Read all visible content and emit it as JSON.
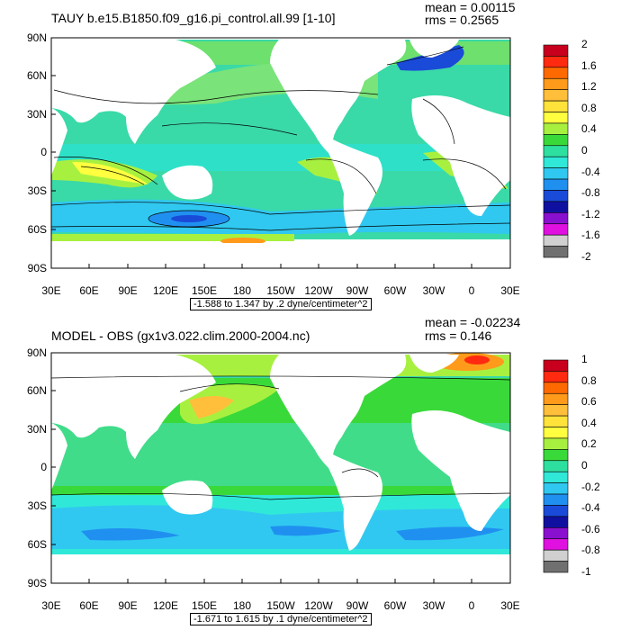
{
  "panels": [
    {
      "title": "TAUY b.e15.B1850.f09_g16.pi_control.all.99 [1-10]",
      "mean": "mean = 0.00115",
      "rms": "rms = 0.2565",
      "range_note": "-1.588 to 1.347 by .2 dyne/centimeter^2",
      "colorbar_labels": [
        "2",
        "1.6",
        "1.2",
        "0.8",
        "0.4",
        "0",
        "-0.4",
        "-0.8",
        "-1.2",
        "-1.6",
        "-2"
      ],
      "colorbar_colors": [
        "#c8001e",
        "#ff2a10",
        "#ff6a00",
        "#ff9a1a",
        "#ffbf3a",
        "#ffe23a",
        "#ffff40",
        "#a8f040",
        "#3ad93a",
        "#2ee0a0",
        "#30e8d8",
        "#30c8f0",
        "#2090f0",
        "#1a4ad8",
        "#1010a0",
        "#8a10d0",
        "#e010e0",
        "#d0d0d0",
        "#707070"
      ]
    },
    {
      "title": "MODEL - OBS (gx1v3.022.clim.2000-2004.nc)",
      "mean": "mean = -0.02234",
      "rms": "rms = 0.146",
      "range_note": "-1.671 to 1.615 by .1 dyne/centimeter^2",
      "colorbar_labels": [
        "1",
        "0.8",
        "0.6",
        "0.4",
        "0.2",
        "0",
        "-0.2",
        "-0.4",
        "-0.6",
        "-0.8",
        "-1"
      ],
      "colorbar_colors": [
        "#c8001e",
        "#ff2a10",
        "#ff6a00",
        "#ff9a1a",
        "#ffbf3a",
        "#ffe23a",
        "#ffff40",
        "#a8f040",
        "#3ad93a",
        "#2ee0a0",
        "#30e8d8",
        "#30c8f0",
        "#2090f0",
        "#1a4ad8",
        "#1010a0",
        "#8a10d0",
        "#e010e0",
        "#d0d0d0",
        "#707070"
      ]
    }
  ],
  "lat_labels": [
    "90N",
    "60N",
    "30N",
    "0",
    "30S",
    "60S",
    "90S"
  ],
  "lon_labels": [
    "30E",
    "60E",
    "90E",
    "120E",
    "150E",
    "180",
    "150W",
    "120W",
    "90W",
    "60W",
    "30W",
    "0",
    "30E"
  ]
}
